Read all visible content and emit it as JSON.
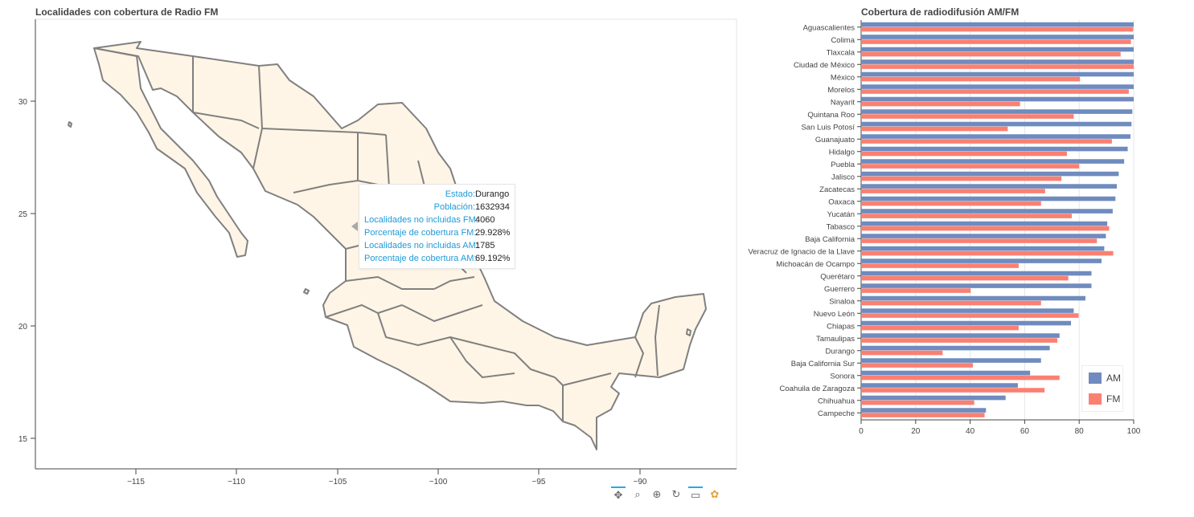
{
  "map": {
    "title": "Localidades con cobertura de Radio FM",
    "x_ticks": [
      "−115",
      "−110",
      "−105",
      "−100",
      "−95",
      "−90"
    ],
    "y_ticks": [
      "30",
      "25",
      "20",
      "15"
    ],
    "fill_color": "#fff5e6",
    "stroke_color": "#808080"
  },
  "tooltip": {
    "rows": [
      {
        "key": "Estado:",
        "value": "Durango"
      },
      {
        "key": "Población:",
        "value": "1632934"
      },
      {
        "key": "Localidades no incluidas FM:",
        "value": "4060"
      },
      {
        "key": "Porcentaje de cobertura FM:",
        "value": "29.928%"
      },
      {
        "key": "Localidades no incluidas AM:",
        "value": "1785"
      },
      {
        "key": "Porcentaje de cobertura AM:",
        "value": "69.192%"
      }
    ]
  },
  "toolbar": {
    "tools": [
      {
        "name": "pan-tool-icon",
        "glyph": "✥"
      },
      {
        "name": "box-zoom-tool-icon",
        "glyph": "⌕"
      },
      {
        "name": "wheel-zoom-tool-icon",
        "glyph": "⊕"
      },
      {
        "name": "reset-tool-icon",
        "glyph": "↻"
      },
      {
        "name": "hover-tool-icon",
        "glyph": "▭"
      },
      {
        "name": "bokeh-logo-icon",
        "glyph": "✿"
      }
    ]
  },
  "chart_data": {
    "type": "bar",
    "orientation": "horizontal",
    "title": "Cobertura de radiodifusión AM/FM",
    "xlim": [
      0,
      100
    ],
    "x_ticks": [
      "0",
      "20",
      "40",
      "60",
      "80",
      "100"
    ],
    "grid": true,
    "legend_position": "bottom-right",
    "categories": [
      "Aguascalientes",
      "Colima",
      "Tlaxcala",
      "Ciudad de México",
      "México",
      "Morelos",
      "Nayarit",
      "Quintana Roo",
      "San Luis Potosí",
      "Guanajuato",
      "Hidalgo",
      "Puebla",
      "Jalisco",
      "Zacatecas",
      "Oaxaca",
      "Yucatán",
      "Tabasco",
      "Baja California",
      "Veracruz de Ignacio de la Llave",
      "Michoacán de Ocampo",
      "Querétaro",
      "Guerrero",
      "Sinaloa",
      "Nuevo León",
      "Chiapas",
      "Tamaulipas",
      "Durango",
      "Baja California Sur",
      "Sonora",
      "Coahuila de Zaragoza",
      "Chihuahua",
      "Campeche"
    ],
    "series": [
      {
        "name": "AM",
        "color": "#6f8bbf",
        "values": [
          100,
          100,
          100,
          100,
          100,
          100,
          100,
          99.5,
          99.2,
          98.8,
          97.8,
          96.5,
          94.5,
          93.8,
          93.3,
          92.3,
          90.3,
          89.8,
          89.2,
          88.2,
          84.5,
          84.5,
          82.3,
          78,
          77,
          72.8,
          69.2,
          66,
          62,
          57.5,
          53,
          45.8
        ]
      },
      {
        "name": "FM",
        "color": "#fa8072",
        "values": [
          99.8,
          99,
          95.2,
          100,
          80.3,
          98.2,
          58.3,
          78,
          53.8,
          92,
          75.5,
          80,
          73.5,
          67.5,
          66,
          77.3,
          91,
          86.5,
          92.5,
          57.8,
          76,
          40.2,
          66,
          79.8,
          57.8,
          72,
          29.9,
          41,
          72.8,
          67.3,
          41.5,
          45.3
        ]
      }
    ]
  }
}
